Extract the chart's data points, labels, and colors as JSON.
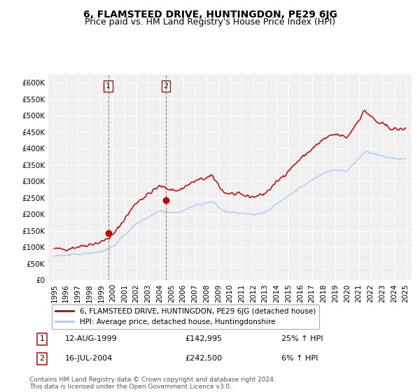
{
  "title": "6, FLAMSTEED DRIVE, HUNTINGDON, PE29 6JG",
  "subtitle": "Price paid vs. HM Land Registry's House Price Index (HPI)",
  "ylim": [
    0,
    625000
  ],
  "yticks": [
    0,
    50000,
    100000,
    150000,
    200000,
    250000,
    300000,
    350000,
    400000,
    450000,
    500000,
    550000,
    600000
  ],
  "ytick_labels": [
    "£0",
    "£50K",
    "£100K",
    "£150K",
    "£200K",
    "£250K",
    "£300K",
    "£350K",
    "£400K",
    "£450K",
    "£500K",
    "£550K",
    "£600K"
  ],
  "plot_bg_color": "#f0f0f0",
  "grid_color": "#ffffff",
  "red_color": "#cc0000",
  "blue_color": "#aaccee",
  "sale1_year": 1999.62,
  "sale1_price": 142995,
  "sale2_year": 2004.54,
  "sale2_price": 242500,
  "vline1_year": 1999.62,
  "vline2_year": 2004.54,
  "legend_label_red": "6, FLAMSTEED DRIVE, HUNTINGDON, PE29 6JG (detached house)",
  "legend_label_blue": "HPI: Average price, detached house, Huntingdonshire",
  "table_row1": [
    "1",
    "12-AUG-1999",
    "£142,995",
    "25% ↑ HPI"
  ],
  "table_row2": [
    "2",
    "16-JUL-2004",
    "£242,500",
    "6% ↑ HPI"
  ],
  "footer": "Contains HM Land Registry data © Crown copyright and database right 2024.\nThis data is licensed under the Open Government Licence v3.0.",
  "title_fontsize": 10,
  "subtitle_fontsize": 9,
  "tick_fontsize": 7.5
}
